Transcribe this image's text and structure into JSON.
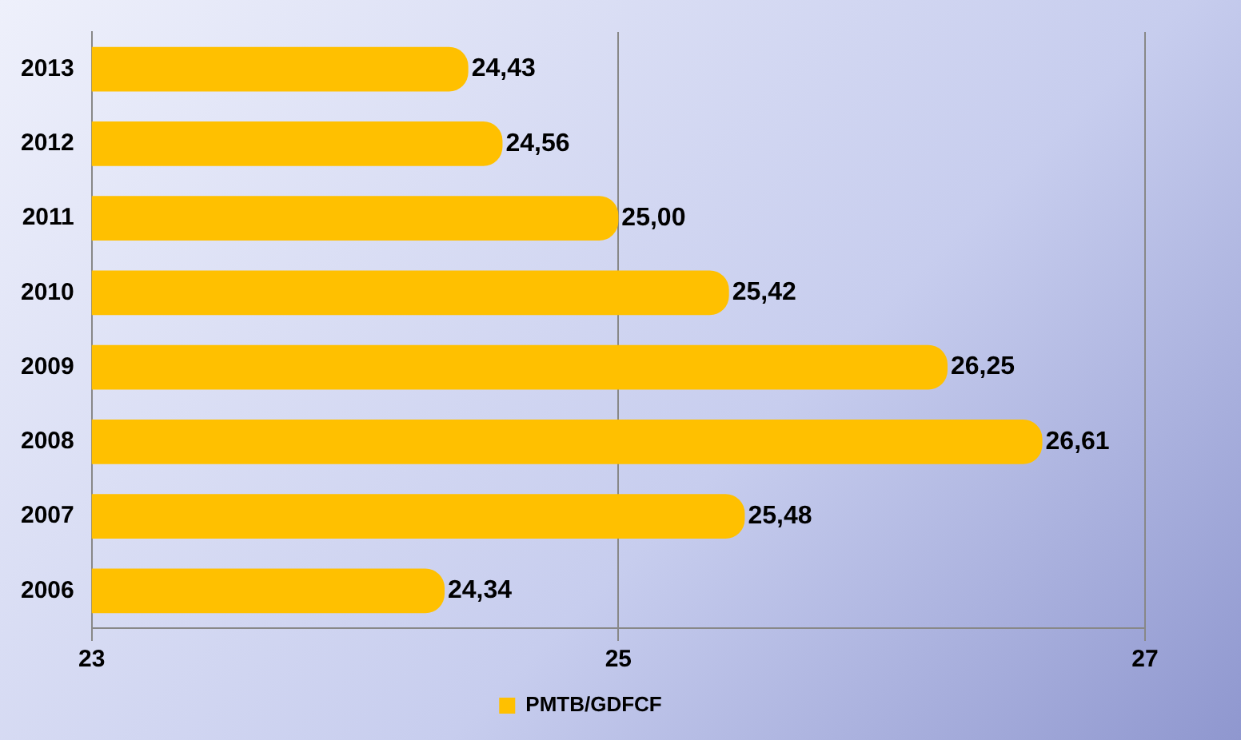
{
  "chart_data": {
    "type": "bar",
    "orientation": "horizontal",
    "categories": [
      "2013",
      "2012",
      "2011",
      "2010",
      "2009",
      "2008",
      "2007",
      "2006"
    ],
    "series": [
      {
        "name": "PMTB/GDFCF",
        "color": "#ffc000",
        "values": [
          24.43,
          24.56,
          25.0,
          25.42,
          26.25,
          26.61,
          25.48,
          24.34
        ],
        "value_labels": [
          "24,43",
          "24,56",
          "25,00",
          "25,42",
          "26,25",
          "26,61",
          "25,48",
          "24,34"
        ]
      }
    ],
    "xlim": [
      23,
      27
    ],
    "xticks": [
      23,
      25,
      27
    ],
    "grid": "x",
    "legend": "bottom"
  }
}
